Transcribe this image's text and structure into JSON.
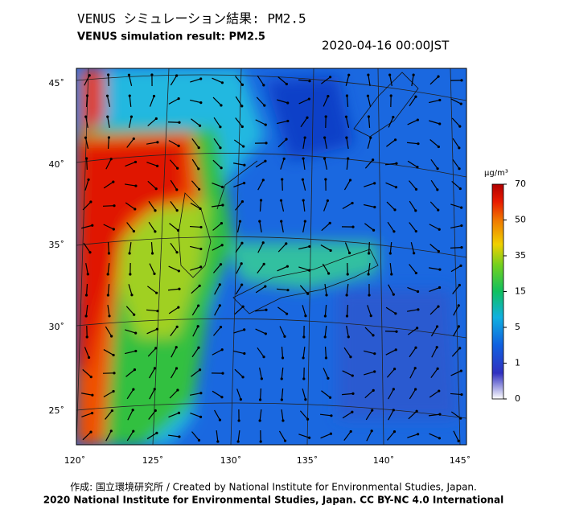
{
  "title_ja": "VENUS シミュレーション結果: PM2.5",
  "title_en": "VENUS simulation result: PM2.5",
  "timestamp": "2020-04-16 00:00JST",
  "map": {
    "lat_labels": [
      "45˚",
      "40˚",
      "35˚",
      "30˚",
      "25˚"
    ],
    "lon_labels": [
      "120˚",
      "125˚",
      "130˚",
      "135˚",
      "140˚",
      "145˚"
    ]
  },
  "colorbar": {
    "unit": "µg/m³",
    "ticks": [
      70,
      50,
      35,
      15,
      5,
      1,
      0
    ]
  },
  "footer": {
    "credit": "作成: 国立環境研究所 / Created by National Institute for Environmental Studies, Japan.",
    "copyright": "2020 National Institute for Environmental Studies, Japan. CC BY-NC 4.0 International"
  }
}
